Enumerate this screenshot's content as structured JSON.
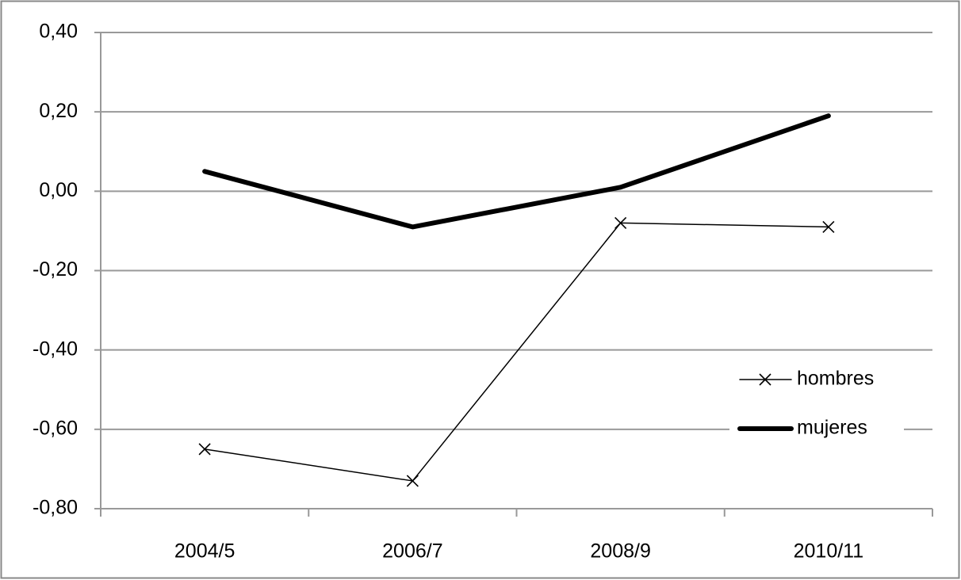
{
  "chart_data": {
    "type": "line",
    "categories": [
      "2004/5",
      "2006/7",
      "2008/9",
      "2010/11"
    ],
    "series": [
      {
        "name": "hombres",
        "color": "#000000",
        "marker": "x",
        "values": [
          -0.65,
          -0.73,
          -0.08,
          -0.09
        ]
      },
      {
        "name": "mujeres",
        "color": "#000000",
        "values": [
          0.05,
          -0.09,
          0.01,
          0.19
        ]
      }
    ],
    "ylim": [
      -0.8,
      0.4
    ],
    "yticks": [
      {
        "value": -0.8,
        "label": "-0,80"
      },
      {
        "value": -0.6,
        "label": "-0,60"
      },
      {
        "value": -0.4,
        "label": "-0,40"
      },
      {
        "value": -0.2,
        "label": "-0,20"
      },
      {
        "value": 0,
        "label": "0,00"
      },
      {
        "value": 0.2,
        "label": "0,20"
      },
      {
        "value": 0.4,
        "label": "0,40"
      }
    ],
    "grid": true,
    "legend": "right"
  }
}
